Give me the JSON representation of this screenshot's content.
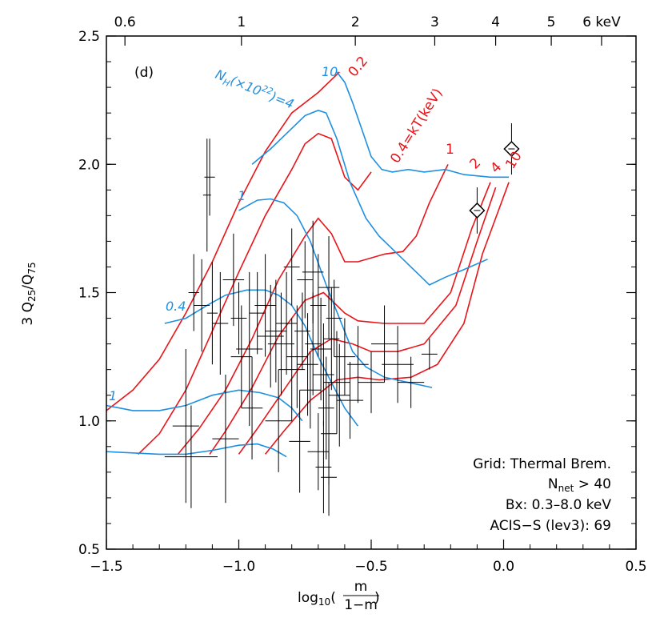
{
  "chart_data": {
    "type": "line",
    "panel_label": "(d)",
    "xlabel_prefix": "log",
    "xlabel_sub": "10",
    "xlabel_frac_num": "m",
    "xlabel_frac_den": "1−m",
    "ylabel": "3 Q25/Q75",
    "ylabel_parts": {
      "lead": "3 Q",
      "sub1": "25",
      "mid": "/Q",
      "sub2": "75"
    },
    "xlim": [
      -1.5,
      0.5
    ],
    "ylim": [
      0.5,
      2.5
    ],
    "x_ticks": [
      {
        "value": -1.5,
        "label": "−1.5"
      },
      {
        "value": -1.0,
        "label": "−1.0"
      },
      {
        "value": -0.5,
        "label": "−0.5"
      },
      {
        "value": 0.0,
        "label": "0.0"
      },
      {
        "value": 0.5,
        "label": "0.5"
      }
    ],
    "y_ticks": [
      {
        "value": 0.5,
        "label": "0.5"
      },
      {
        "value": 1.0,
        "label": "1.0"
      },
      {
        "value": 1.5,
        "label": "1.5"
      },
      {
        "value": 2.0,
        "label": "2.0"
      },
      {
        "value": 2.5,
        "label": "2.5"
      }
    ],
    "top_axis_ticks": [
      {
        "x": -1.43,
        "label": "0.6"
      },
      {
        "x": -0.99,
        "label": "1"
      },
      {
        "x": -0.56,
        "label": "2"
      },
      {
        "x": -0.26,
        "label": "3"
      },
      {
        "x": -0.03,
        "label": "4"
      },
      {
        "x": 0.18,
        "label": "5"
      },
      {
        "x": 0.37,
        "label": "6 keV"
      }
    ],
    "colors": {
      "kT_grid": "#e8141a",
      "NH_grid": "#1f8fe0",
      "data": "#000000"
    },
    "kT_curves": [
      {
        "label": "0.2",
        "points": [
          [
            -1.5,
            1.04
          ],
          [
            -1.4,
            1.12
          ],
          [
            -1.3,
            1.24
          ],
          [
            -1.2,
            1.42
          ],
          [
            -1.1,
            1.62
          ],
          [
            -1.0,
            1.85
          ],
          [
            -0.9,
            2.05
          ],
          [
            -0.8,
            2.2
          ],
          [
            -0.7,
            2.28
          ],
          [
            -0.62,
            2.36
          ]
        ]
      },
      {
        "label": "0.4=kT(keV)",
        "points": [
          [
            -1.38,
            0.87
          ],
          [
            -1.3,
            0.95
          ],
          [
            -1.2,
            1.12
          ],
          [
            -1.1,
            1.35
          ],
          [
            -1.0,
            1.58
          ],
          [
            -0.9,
            1.8
          ],
          [
            -0.8,
            1.98
          ],
          [
            -0.75,
            2.08
          ],
          [
            -0.7,
            2.12
          ],
          [
            -0.65,
            2.1
          ],
          [
            -0.6,
            1.95
          ],
          [
            -0.55,
            1.9
          ],
          [
            -0.5,
            1.97
          ]
        ]
      },
      {
        "label": "1",
        "points": [
          [
            -1.23,
            0.87
          ],
          [
            -1.15,
            0.97
          ],
          [
            -1.05,
            1.12
          ],
          [
            -0.95,
            1.32
          ],
          [
            -0.85,
            1.55
          ],
          [
            -0.75,
            1.72
          ],
          [
            -0.7,
            1.79
          ],
          [
            -0.65,
            1.73
          ],
          [
            -0.6,
            1.62
          ],
          [
            -0.55,
            1.62
          ],
          [
            -0.45,
            1.65
          ],
          [
            -0.38,
            1.66
          ],
          [
            -0.33,
            1.72
          ],
          [
            -0.28,
            1.85
          ],
          [
            -0.21,
            2.0
          ]
        ]
      },
      {
        "label": "2",
        "points": [
          [
            -1.11,
            0.87
          ],
          [
            -1.05,
            0.96
          ],
          [
            -0.95,
            1.13
          ],
          [
            -0.85,
            1.33
          ],
          [
            -0.75,
            1.47
          ],
          [
            -0.68,
            1.5
          ],
          [
            -0.6,
            1.42
          ],
          [
            -0.55,
            1.39
          ],
          [
            -0.45,
            1.38
          ],
          [
            -0.3,
            1.38
          ],
          [
            -0.2,
            1.5
          ],
          [
            -0.12,
            1.75
          ],
          [
            -0.05,
            1.93
          ]
        ]
      },
      {
        "label": "4",
        "points": [
          [
            -1.0,
            0.87
          ],
          [
            -0.93,
            0.97
          ],
          [
            -0.83,
            1.12
          ],
          [
            -0.73,
            1.27
          ],
          [
            -0.65,
            1.32
          ],
          [
            -0.57,
            1.3
          ],
          [
            -0.5,
            1.27
          ],
          [
            -0.4,
            1.27
          ],
          [
            -0.3,
            1.3
          ],
          [
            -0.18,
            1.45
          ],
          [
            -0.1,
            1.7
          ],
          [
            -0.03,
            1.91
          ]
        ]
      },
      {
        "label": "10",
        "points": [
          [
            -0.9,
            0.87
          ],
          [
            -0.83,
            0.96
          ],
          [
            -0.73,
            1.08
          ],
          [
            -0.63,
            1.16
          ],
          [
            -0.55,
            1.17
          ],
          [
            -0.47,
            1.16
          ],
          [
            -0.35,
            1.17
          ],
          [
            -0.25,
            1.22
          ],
          [
            -0.15,
            1.38
          ],
          [
            -0.08,
            1.65
          ],
          [
            0.02,
            1.93
          ]
        ]
      }
    ],
    "NH_curves": [
      {
        "label": "10",
        "points": [
          [
            -0.63,
            2.36
          ],
          [
            -0.6,
            2.32
          ],
          [
            -0.57,
            2.24
          ],
          [
            -0.53,
            2.12
          ],
          [
            -0.5,
            2.03
          ],
          [
            -0.46,
            1.98
          ],
          [
            -0.42,
            1.97
          ],
          [
            -0.36,
            1.98
          ],
          [
            -0.3,
            1.97
          ],
          [
            -0.22,
            1.98
          ],
          [
            -0.15,
            1.96
          ],
          [
            -0.05,
            1.95
          ],
          [
            0.02,
            1.95
          ]
        ]
      },
      {
        "label": "4",
        "points": [
          [
            -0.95,
            2.0
          ],
          [
            -0.88,
            2.06
          ],
          [
            -0.82,
            2.12
          ],
          [
            -0.75,
            2.19
          ],
          [
            -0.7,
            2.21
          ],
          [
            -0.67,
            2.2
          ],
          [
            -0.63,
            2.1
          ],
          [
            -0.58,
            1.93
          ],
          [
            -0.52,
            1.79
          ],
          [
            -0.47,
            1.72
          ],
          [
            -0.4,
            1.65
          ],
          [
            -0.32,
            1.57
          ],
          [
            -0.28,
            1.53
          ],
          [
            -0.22,
            1.56
          ],
          [
            -0.15,
            1.59
          ],
          [
            -0.06,
            1.63
          ]
        ]
      },
      {
        "label": "1",
        "points": [
          [
            -1.0,
            1.82
          ],
          [
            -0.93,
            1.86
          ],
          [
            -0.88,
            1.865
          ],
          [
            -0.83,
            1.85
          ],
          [
            -0.78,
            1.8
          ],
          [
            -0.73,
            1.7
          ],
          [
            -0.67,
            1.53
          ],
          [
            -0.62,
            1.4
          ],
          [
            -0.57,
            1.27
          ],
          [
            -0.52,
            1.21
          ],
          [
            -0.45,
            1.17
          ],
          [
            -0.36,
            1.15
          ],
          [
            -0.27,
            1.13
          ]
        ]
      },
      {
        "label": "0.4",
        "points": [
          [
            -1.28,
            1.38
          ],
          [
            -1.2,
            1.4
          ],
          [
            -1.12,
            1.45
          ],
          [
            -1.05,
            1.49
          ],
          [
            -0.97,
            1.51
          ],
          [
            -0.9,
            1.51
          ],
          [
            -0.85,
            1.49
          ],
          [
            -0.8,
            1.45
          ],
          [
            -0.75,
            1.37
          ],
          [
            -0.7,
            1.25
          ],
          [
            -0.65,
            1.15
          ],
          [
            -0.6,
            1.05
          ],
          [
            -0.55,
            0.98
          ]
        ]
      },
      {
        "label": "1",
        "points": [
          [
            -1.5,
            1.06
          ],
          [
            -1.4,
            1.04
          ],
          [
            -1.3,
            1.04
          ],
          [
            -1.2,
            1.06
          ],
          [
            -1.1,
            1.1
          ],
          [
            -1.0,
            1.12
          ],
          [
            -0.92,
            1.11
          ],
          [
            -0.85,
            1.09
          ],
          [
            -0.8,
            1.05
          ],
          [
            -0.76,
            1.0
          ]
        ]
      },
      {
        "label": "",
        "points": [
          [
            -1.5,
            0.88
          ],
          [
            -1.4,
            0.875
          ],
          [
            -1.3,
            0.87
          ],
          [
            -1.2,
            0.87
          ],
          [
            -1.1,
            0.885
          ],
          [
            -1.0,
            0.905
          ],
          [
            -0.93,
            0.91
          ],
          [
            -0.87,
            0.89
          ],
          [
            -0.82,
            0.86
          ]
        ]
      }
    ],
    "data_points": [
      [
        -1.12,
        1.88,
        0.015,
        0.22
      ],
      [
        -1.11,
        1.95,
        0.02,
        0.15
      ],
      [
        -1.17,
        1.5,
        0.02,
        0.15
      ],
      [
        -1.14,
        1.45,
        0.03,
        0.18
      ],
      [
        -1.1,
        1.42,
        0.02,
        0.2
      ],
      [
        -1.07,
        1.38,
        0.03,
        0.2
      ],
      [
        -1.02,
        1.55,
        0.04,
        0.18
      ],
      [
        -1.0,
        1.4,
        0.03,
        0.14
      ],
      [
        -0.99,
        1.25,
        0.04,
        0.2
      ],
      [
        -0.96,
        1.28,
        0.05,
        0.3
      ],
      [
        -0.93,
        1.42,
        0.03,
        0.16
      ],
      [
        -0.9,
        1.45,
        0.04,
        0.2
      ],
      [
        -0.88,
        1.33,
        0.05,
        0.2
      ],
      [
        -0.86,
        1.35,
        0.04,
        0.2
      ],
      [
        -0.84,
        1.3,
        0.05,
        0.2
      ],
      [
        -0.82,
        1.38,
        0.04,
        0.2
      ],
      [
        -0.8,
        1.2,
        0.05,
        0.2
      ],
      [
        -0.78,
        1.25,
        0.04,
        0.2
      ],
      [
        -0.76,
        1.35,
        0.03,
        0.15
      ],
      [
        -0.74,
        1.22,
        0.04,
        0.2
      ],
      [
        -0.73,
        1.12,
        0.04,
        0.15
      ],
      [
        -0.72,
        1.3,
        0.03,
        0.2
      ],
      [
        -0.7,
        1.45,
        0.03,
        0.2
      ],
      [
        -0.69,
        1.28,
        0.04,
        0.2
      ],
      [
        -0.68,
        1.18,
        0.04,
        0.2
      ],
      [
        -0.67,
        1.05,
        0.03,
        0.2
      ],
      [
        -0.66,
        0.95,
        0.03,
        0.2
      ],
      [
        -0.65,
        1.32,
        0.03,
        0.2
      ],
      [
        -0.64,
        1.4,
        0.03,
        0.15
      ],
      [
        -0.63,
        1.15,
        0.05,
        0.2
      ],
      [
        -0.62,
        1.1,
        0.04,
        0.2
      ],
      [
        -0.6,
        1.25,
        0.04,
        0.15
      ],
      [
        -0.58,
        1.08,
        0.05,
        0.15
      ],
      [
        -0.55,
        1.22,
        0.04,
        0.15
      ],
      [
        -0.5,
        1.15,
        0.05,
        0.12
      ],
      [
        -0.45,
        1.3,
        0.05,
        0.15
      ],
      [
        -0.4,
        1.22,
        0.06,
        0.15
      ],
      [
        -0.35,
        1.15,
        0.05,
        0.1
      ],
      [
        -0.28,
        1.26,
        0.03,
        0.06
      ],
      [
        -1.2,
        0.98,
        0.05,
        0.3
      ],
      [
        -1.05,
        0.93,
        0.05,
        0.25
      ],
      [
        -0.95,
        1.05,
        0.04,
        0.2
      ],
      [
        -0.85,
        1.0,
        0.05,
        0.2
      ],
      [
        -0.77,
        0.92,
        0.04,
        0.2
      ],
      [
        -0.7,
        0.88,
        0.04,
        0.15
      ],
      [
        -0.68,
        0.82,
        0.03,
        0.18
      ],
      [
        -0.66,
        0.78,
        0.03,
        0.15
      ],
      [
        -1.18,
        0.86,
        0.1,
        0.2
      ],
      [
        -0.75,
        1.55,
        0.03,
        0.15
      ],
      [
        -0.8,
        1.6,
        0.03,
        0.15
      ],
      [
        -0.72,
        1.58,
        0.04,
        0.2
      ],
      [
        -0.66,
        1.52,
        0.04,
        0.2
      ]
    ],
    "diamonds": [
      [
        0.03,
        2.06,
        0.0,
        0.1
      ],
      [
        -0.1,
        1.82,
        0.0,
        0.09
      ]
    ],
    "annotations": {
      "nh_label": "N",
      "nh_sub": "H",
      "nh_mid": "(×10",
      "nh_sup": "22",
      "nh_end": ")=4",
      "nh_10": "10",
      "nh_1_upper": "1",
      "nh_04": "0.4",
      "nh_1_lower": "1",
      "kT_02": "0.2",
      "kT_04": "0.4=kT(keV)",
      "kT_1": "1",
      "kT_2": "2",
      "kT_4": "4",
      "kT_10": "10"
    },
    "info_box": {
      "line1": "Grid: Thermal Brem.",
      "line2_main": "N",
      "line2_sub": "net",
      "line2_rest": " > 40",
      "line3": "Bx: 0.3–8.0 keV",
      "line4": "ACIS−S (lev3): 69"
    }
  }
}
